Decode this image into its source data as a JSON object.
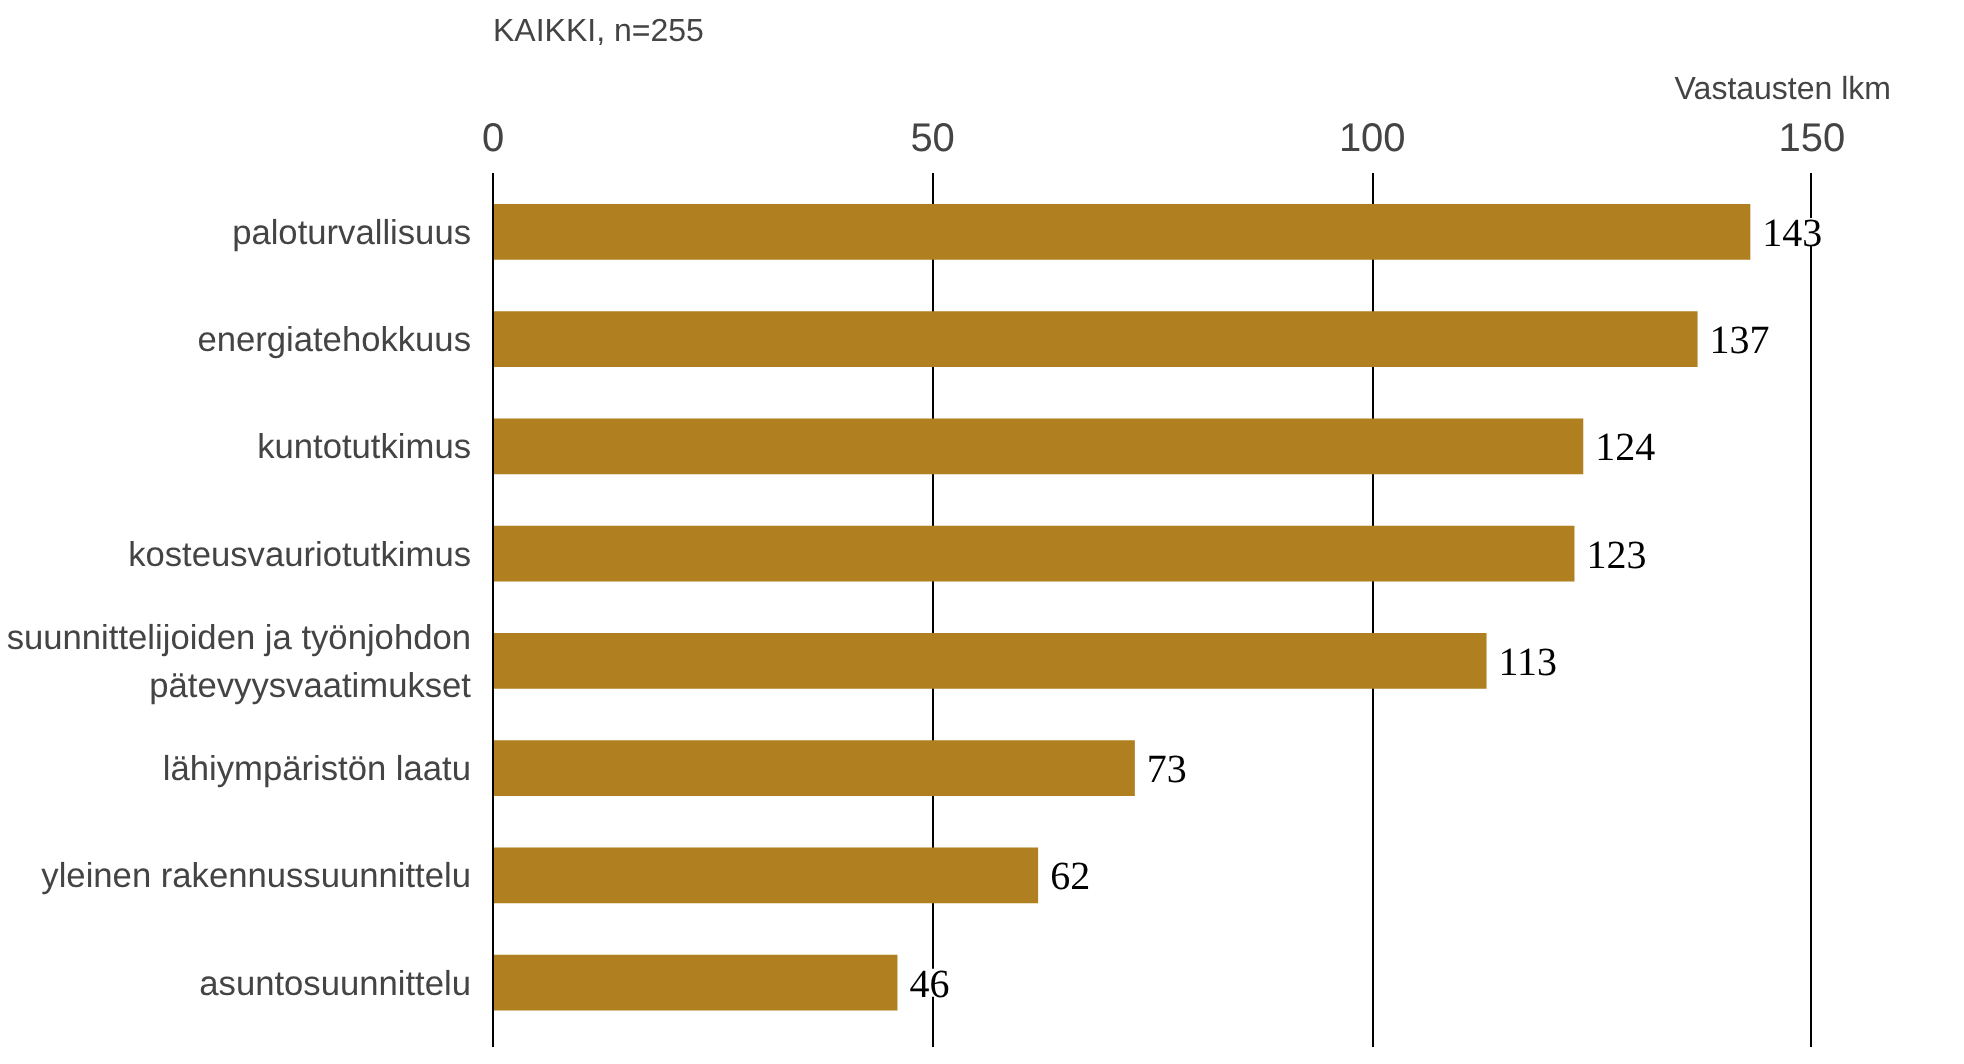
{
  "chart_data": {
    "type": "bar",
    "orientation": "horizontal",
    "title": "KAIKKI, n=255",
    "xlabel": "Vastausten lkm",
    "categories": [
      "paloturvallisuus",
      "energiatehokkuus",
      "kuntotutkimus",
      "kosteusvauriotutkimus",
      "suunnittelijoiden ja työnjohdon\npätevyysvaatimukset",
      "lähiympäristön laatu",
      "yleinen rakennussuunnittelu",
      "asuntosuunnittelu"
    ],
    "values": [
      143,
      137,
      124,
      123,
      113,
      73,
      62,
      46
    ],
    "color": "#b07f1f",
    "xlim": [
      0,
      150
    ],
    "xticks": [
      0,
      50,
      100,
      150
    ],
    "grid": "x",
    "data_labels": true
  }
}
